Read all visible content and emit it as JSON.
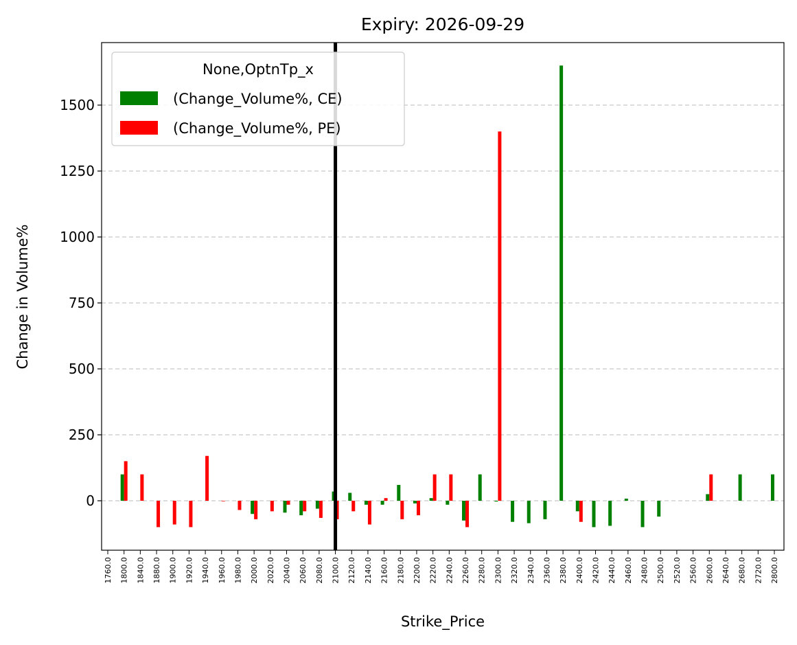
{
  "chart_data": {
    "type": "bar",
    "title": "Expiry: 2026-09-29",
    "xlabel": "Strike_Price",
    "ylabel": "Change in Volume%",
    "ylim": [
      -190,
      1780
    ],
    "yticks": [
      0,
      250,
      500,
      750,
      1000,
      1250,
      1500
    ],
    "grid": "y-dashed",
    "legend": {
      "title": "None,OptnTp_x",
      "placement": "top-left"
    },
    "marker_line": {
      "category": "2100.0"
    },
    "categories": [
      "1760.0",
      "1800.0",
      "1840.0",
      "1880.0",
      "1900.0",
      "1920.0",
      "1940.0",
      "1960.0",
      "1980.0",
      "2000.0",
      "2020.0",
      "2040.0",
      "2060.0",
      "2080.0",
      "2100.0",
      "2120.0",
      "2140.0",
      "2160.0",
      "2180.0",
      "2200.0",
      "2220.0",
      "2240.0",
      "2260.0",
      "2280.0",
      "2300.0",
      "2320.0",
      "2340.0",
      "2360.0",
      "2380.0",
      "2400.0",
      "2420.0",
      "2440.0",
      "2460.0",
      "2480.0",
      "2500.0",
      "2520.0",
      "2560.0",
      "2600.0",
      "2640.0",
      "2680.0",
      "2720.0",
      "2800.0"
    ],
    "series": [
      {
        "name": "(Change_Volume%, CE)",
        "color": "#008000",
        "values": [
          0,
          100,
          0,
          0,
          0,
          0,
          0,
          0,
          0,
          -50,
          0,
          -45,
          -55,
          -30,
          35,
          30,
          -15,
          -15,
          60,
          -10,
          10,
          -15,
          -75,
          100,
          -3,
          -80,
          -85,
          -70,
          1650,
          -40,
          -100,
          -95,
          8,
          -100,
          -60,
          0,
          0,
          25,
          0,
          100,
          0,
          100
        ]
      },
      {
        "name": "(Change_Volume%, PE)",
        "color": "#ff0000",
        "values": [
          0,
          150,
          100,
          -100,
          -90,
          -100,
          170,
          -2,
          -35,
          -70,
          -40,
          -15,
          -40,
          -65,
          -70,
          -40,
          -90,
          10,
          -70,
          -55,
          100,
          100,
          -100,
          0,
          1400,
          0,
          0,
          0,
          0,
          -80,
          0,
          0,
          0,
          0,
          0,
          0,
          0,
          100,
          0,
          0,
          0,
          0
        ]
      }
    ]
  }
}
